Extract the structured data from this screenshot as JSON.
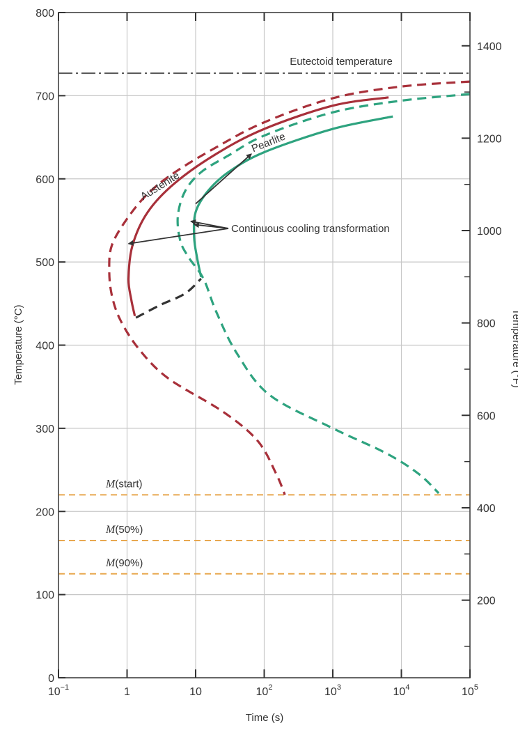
{
  "chart_data": {
    "type": "line",
    "xlabel": "Time (s)",
    "ylabel_left": "Temperature (°C)",
    "ylabel_right": "Temperature (°F)",
    "x_scale": "log",
    "xlim": [
      0.1,
      100000
    ],
    "ylim": [
      0,
      800
    ],
    "grid": true,
    "x_ticks": [
      {
        "value": 0.1,
        "base": "10",
        "exp": "−1"
      },
      {
        "value": 1,
        "base": "1",
        "exp": ""
      },
      {
        "value": 10,
        "base": "10",
        "exp": ""
      },
      {
        "value": 100,
        "base": "10",
        "exp": "2"
      },
      {
        "value": 1000,
        "base": "10",
        "exp": "3"
      },
      {
        "value": 10000,
        "base": "10",
        "exp": "4"
      },
      {
        "value": 100000,
        "base": "10",
        "exp": "5"
      }
    ],
    "y_ticks_left": [
      "0",
      "100",
      "200",
      "300",
      "400",
      "500",
      "600",
      "700",
      "800"
    ],
    "y_ticks_right": [
      {
        "label": "200",
        "value_c": 93.3
      },
      {
        "label": "400",
        "value_c": 204.4
      },
      {
        "label": "600",
        "value_c": 315.6
      },
      {
        "label": "800",
        "value_c": 426.7
      },
      {
        "label": "1000",
        "value_c": 537.8
      },
      {
        "label": "1200",
        "value_c": 648.9
      },
      {
        "label": "1400",
        "value_c": 760
      }
    ],
    "right_minor_ticks_c": [
      37.8,
      148.9,
      260,
      371.1,
      482.2,
      593.3,
      704.4
    ],
    "reference_lines": [
      {
        "label": "Eutectoid temperature",
        "y": 727,
        "style": "dashdot",
        "color": "#555555"
      },
      {
        "label": "M(start)",
        "letter": "M",
        "suffix": "(start)",
        "y": 220,
        "style": "dashed",
        "color": "#e8a850"
      },
      {
        "label": "M(50%)",
        "letter": "M",
        "suffix": "(50%)",
        "y": 165,
        "style": "dashed",
        "color": "#e8a850"
      },
      {
        "label": "M(90%)",
        "letter": "M",
        "suffix": "(90%)",
        "y": 125,
        "style": "dashed",
        "color": "#e8a850"
      }
    ],
    "series": [
      {
        "color": "#a8303a",
        "style": "dashed",
        "points": [
          [
            100000,
            717
          ],
          [
            10000,
            711
          ],
          [
            1000,
            697
          ],
          [
            100,
            668
          ],
          [
            20,
            638
          ],
          [
            5,
            608
          ],
          [
            2,
            582
          ],
          [
            1,
            552
          ],
          [
            0.6,
            520
          ],
          [
            0.55,
            490
          ],
          [
            0.6,
            460
          ],
          [
            0.8,
            430
          ],
          [
            1.5,
            395
          ],
          [
            4,
            360
          ],
          [
            25,
            320
          ],
          [
            80,
            285
          ],
          [
            150,
            245
          ],
          [
            200,
            220
          ]
        ]
      },
      {
        "color": "#a8303a",
        "style": "solid",
        "points": [
          [
            6500,
            698
          ],
          [
            1000,
            688
          ],
          [
            100,
            660
          ],
          [
            20,
            630
          ],
          [
            5,
            595
          ],
          [
            2,
            560
          ],
          [
            1.2,
            520
          ],
          [
            1.05,
            480
          ],
          [
            1.15,
            455
          ],
          [
            1.3,
            435
          ]
        ]
      },
      {
        "color": "#2ea37f",
        "style": "dashed",
        "points": [
          [
            100000,
            702
          ],
          [
            10000,
            694
          ],
          [
            1000,
            680
          ],
          [
            100,
            652
          ],
          [
            30,
            628
          ],
          [
            12,
            608
          ],
          [
            7,
            585
          ],
          [
            5.5,
            555
          ],
          [
            6,
            525
          ],
          [
            8,
            505
          ],
          [
            13,
            480
          ],
          [
            20,
            440
          ],
          [
            40,
            390
          ],
          [
            120,
            340
          ],
          [
            1000,
            300
          ],
          [
            6000,
            270
          ],
          [
            18000,
            245
          ],
          [
            35000,
            222
          ]
        ]
      },
      {
        "color": "#2ea37f",
        "style": "solid",
        "points": [
          [
            7500,
            675
          ],
          [
            1000,
            660
          ],
          [
            100,
            632
          ],
          [
            30,
            608
          ],
          [
            15,
            585
          ],
          [
            10,
            560
          ],
          [
            9.5,
            530
          ],
          [
            10.5,
            505
          ],
          [
            12,
            482
          ]
        ]
      },
      {
        "color": "#333333",
        "style": "dashed",
        "points": [
          [
            1.35,
            433
          ],
          [
            3,
            448
          ],
          [
            7,
            462
          ],
          [
            12,
            480
          ]
        ]
      }
    ],
    "annotations": [
      {
        "text": "Pearlite",
        "x": 120,
        "y": 640,
        "rotate": -22,
        "arrow_tail": [
          10,
          570
        ],
        "arrow_head": [
          65,
          630
        ]
      },
      {
        "text": "Austenite",
        "x": 3.2,
        "y": 588,
        "rotate": -32
      },
      {
        "text": "Continuous cooling transformation",
        "x": 40,
        "y": 537,
        "targets": [
          [
            1.05,
            522
          ],
          [
            9.5,
            545
          ],
          [
            8.5,
            549
          ]
        ]
      }
    ]
  }
}
